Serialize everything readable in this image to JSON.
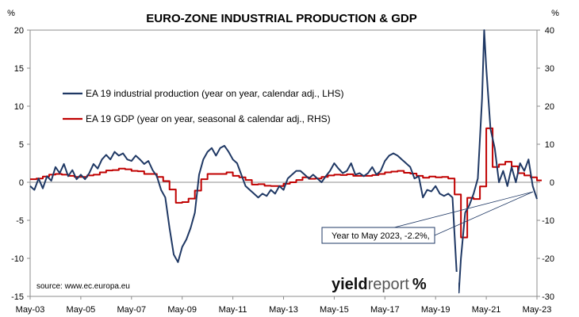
{
  "chart_data": {
    "type": "line",
    "title": "EURO-ZONE INDUSTRIAL PRODUCTION & GDP",
    "left_unit": "%",
    "right_unit": "%",
    "x_tick_labels": [
      "May-03",
      "May-05",
      "May-07",
      "May-09",
      "May-11",
      "May-13",
      "May-15",
      "May-17",
      "May-19",
      "May-21",
      "May-23"
    ],
    "x_range": [
      "2003-05",
      "2023-05"
    ],
    "ylim_left": [
      -15,
      20
    ],
    "ylim_right": [
      -30,
      40
    ],
    "yticks_left": [
      "20",
      "15",
      "10",
      "5",
      "0",
      "-5",
      "-10",
      "-15"
    ],
    "yticks_right": [
      "40",
      "30",
      "20",
      "10",
      "0",
      "-10",
      "-20",
      "-30"
    ],
    "grid": false,
    "legend_position": "upper-left",
    "series": [
      {
        "name": "EA 19 industrial production (year on year, calendar adj., LHS)",
        "color": "#1f3864",
        "axis": "left",
        "points": [
          [
            "2003-05",
            -0.5
          ],
          [
            "2003-07",
            -1.0
          ],
          [
            "2003-09",
            0.5
          ],
          [
            "2003-11",
            -0.8
          ],
          [
            "2004-01",
            0.8
          ],
          [
            "2004-03",
            0.2
          ],
          [
            "2004-05",
            2.0
          ],
          [
            "2004-07",
            1.2
          ],
          [
            "2004-09",
            2.4
          ],
          [
            "2004-11",
            0.8
          ],
          [
            "2005-01",
            1.6
          ],
          [
            "2005-03",
            0.4
          ],
          [
            "2005-05",
            1.0
          ],
          [
            "2005-07",
            0.4
          ],
          [
            "2005-09",
            1.2
          ],
          [
            "2005-11",
            2.4
          ],
          [
            "2006-01",
            1.8
          ],
          [
            "2006-03",
            3.0
          ],
          [
            "2006-05",
            3.6
          ],
          [
            "2006-07",
            3.0
          ],
          [
            "2006-09",
            4.0
          ],
          [
            "2006-11",
            3.5
          ],
          [
            "2007-01",
            3.8
          ],
          [
            "2007-03",
            3.0
          ],
          [
            "2007-05",
            2.8
          ],
          [
            "2007-07",
            3.5
          ],
          [
            "2007-09",
            3.0
          ],
          [
            "2007-11",
            2.4
          ],
          [
            "2008-01",
            2.8
          ],
          [
            "2008-03",
            1.6
          ],
          [
            "2008-05",
            0.8
          ],
          [
            "2008-07",
            -1.0
          ],
          [
            "2008-09",
            -2.0
          ],
          [
            "2008-11",
            -6.0
          ],
          [
            "2009-01",
            -9.5
          ],
          [
            "2009-03",
            -10.5
          ],
          [
            "2009-05",
            -8.5
          ],
          [
            "2009-07",
            -7.5
          ],
          [
            "2009-09",
            -6.0
          ],
          [
            "2009-11",
            -4.0
          ],
          [
            "2010-01",
            1.0
          ],
          [
            "2010-03",
            3.0
          ],
          [
            "2010-05",
            4.0
          ],
          [
            "2010-07",
            4.5
          ],
          [
            "2010-09",
            3.5
          ],
          [
            "2010-11",
            4.5
          ],
          [
            "2011-01",
            4.8
          ],
          [
            "2011-03",
            4.0
          ],
          [
            "2011-05",
            3.0
          ],
          [
            "2011-07",
            2.5
          ],
          [
            "2011-09",
            1.0
          ],
          [
            "2011-11",
            -0.5
          ],
          [
            "2012-01",
            -1.0
          ],
          [
            "2012-03",
            -1.5
          ],
          [
            "2012-05",
            -2.0
          ],
          [
            "2012-07",
            -1.5
          ],
          [
            "2012-09",
            -1.8
          ],
          [
            "2012-11",
            -1.0
          ],
          [
            "2013-01",
            -1.5
          ],
          [
            "2013-03",
            -0.5
          ],
          [
            "2013-05",
            -1.0
          ],
          [
            "2013-07",
            0.5
          ],
          [
            "2013-09",
            1.0
          ],
          [
            "2013-11",
            1.5
          ],
          [
            "2014-01",
            1.5
          ],
          [
            "2014-03",
            1.0
          ],
          [
            "2014-05",
            0.5
          ],
          [
            "2014-07",
            1.0
          ],
          [
            "2014-09",
            0.5
          ],
          [
            "2014-11",
            0.0
          ],
          [
            "2015-01",
            0.8
          ],
          [
            "2015-03",
            1.5
          ],
          [
            "2015-05",
            2.5
          ],
          [
            "2015-07",
            1.8
          ],
          [
            "2015-09",
            1.2
          ],
          [
            "2015-11",
            1.5
          ],
          [
            "2016-01",
            2.5
          ],
          [
            "2016-03",
            1.0
          ],
          [
            "2016-05",
            1.2
          ],
          [
            "2016-07",
            0.8
          ],
          [
            "2016-09",
            1.2
          ],
          [
            "2016-11",
            2.0
          ],
          [
            "2017-01",
            1.0
          ],
          [
            "2017-03",
            1.5
          ],
          [
            "2017-05",
            2.8
          ],
          [
            "2017-07",
            3.5
          ],
          [
            "2017-09",
            3.8
          ],
          [
            "2017-11",
            3.5
          ],
          [
            "2018-01",
            3.0
          ],
          [
            "2018-03",
            2.5
          ],
          [
            "2018-05",
            2.0
          ],
          [
            "2018-07",
            0.5
          ],
          [
            "2018-09",
            0.8
          ],
          [
            "2018-11",
            -2.0
          ],
          [
            "2019-01",
            -1.0
          ],
          [
            "2019-03",
            -1.2
          ],
          [
            "2019-05",
            -0.5
          ],
          [
            "2019-07",
            -1.5
          ],
          [
            "2019-09",
            -1.8
          ],
          [
            "2019-11",
            -1.5
          ],
          [
            "2020-01",
            -2.0
          ],
          [
            "2020-03",
            -12.0
          ],
          [
            "2020-04",
            -14.5
          ],
          [
            "2020-05",
            -10.0
          ],
          [
            "2020-07",
            -4.0
          ],
          [
            "2020-09",
            -3.0
          ],
          [
            "2020-11",
            -1.5
          ],
          [
            "2021-01",
            0.5
          ],
          [
            "2021-03",
            11.0
          ],
          [
            "2021-04",
            20.0
          ],
          [
            "2021-05",
            15.0
          ],
          [
            "2021-07",
            7.0
          ],
          [
            "2021-09",
            4.5
          ],
          [
            "2021-11",
            0.0
          ],
          [
            "2022-01",
            1.5
          ],
          [
            "2022-03",
            -0.5
          ],
          [
            "2022-05",
            2.0
          ],
          [
            "2022-07",
            0.0
          ],
          [
            "2022-09",
            2.5
          ],
          [
            "2022-11",
            1.5
          ],
          [
            "2023-01",
            3.0
          ],
          [
            "2023-03",
            -0.5
          ],
          [
            "2023-05",
            -2.2
          ]
        ]
      },
      {
        "name": "EA 19 GDP (year on year, seasonal & calendar adj., RHS)",
        "color": "#c00000",
        "axis": "right",
        "step": true,
        "points": [
          [
            "2003-05",
            0.8
          ],
          [
            "2003-08",
            1.0
          ],
          [
            "2003-11",
            1.5
          ],
          [
            "2004-02",
            2.0
          ],
          [
            "2004-05",
            2.2
          ],
          [
            "2004-08",
            2.0
          ],
          [
            "2004-11",
            1.7
          ],
          [
            "2005-02",
            1.4
          ],
          [
            "2005-05",
            1.4
          ],
          [
            "2005-08",
            1.8
          ],
          [
            "2005-11",
            2.0
          ],
          [
            "2006-02",
            2.6
          ],
          [
            "2006-05",
            3.1
          ],
          [
            "2006-08",
            3.2
          ],
          [
            "2006-11",
            3.6
          ],
          [
            "2007-02",
            3.4
          ],
          [
            "2007-05",
            3.0
          ],
          [
            "2007-08",
            2.9
          ],
          [
            "2007-11",
            2.2
          ],
          [
            "2008-02",
            2.2
          ],
          [
            "2008-05",
            1.4
          ],
          [
            "2008-08",
            0.3
          ],
          [
            "2008-11",
            -1.9
          ],
          [
            "2009-02",
            -5.4
          ],
          [
            "2009-05",
            -5.2
          ],
          [
            "2009-08",
            -4.3
          ],
          [
            "2009-11",
            -2.2
          ],
          [
            "2010-02",
            0.8
          ],
          [
            "2010-05",
            2.2
          ],
          [
            "2010-08",
            2.2
          ],
          [
            "2010-11",
            2.2
          ],
          [
            "2011-02",
            2.6
          ],
          [
            "2011-05",
            1.7
          ],
          [
            "2011-08",
            1.3
          ],
          [
            "2011-11",
            0.6
          ],
          [
            "2012-02",
            -0.6
          ],
          [
            "2012-05",
            -0.5
          ],
          [
            "2012-08",
            -0.9
          ],
          [
            "2012-11",
            -1.0
          ],
          [
            "2013-02",
            -1.0
          ],
          [
            "2013-05",
            -0.4
          ],
          [
            "2013-08",
            0.0
          ],
          [
            "2013-11",
            0.6
          ],
          [
            "2014-02",
            1.3
          ],
          [
            "2014-05",
            0.9
          ],
          [
            "2014-08",
            1.0
          ],
          [
            "2014-11",
            1.4
          ],
          [
            "2015-02",
            1.8
          ],
          [
            "2015-05",
            2.0
          ],
          [
            "2015-08",
            1.9
          ],
          [
            "2015-11",
            2.1
          ],
          [
            "2016-02",
            1.7
          ],
          [
            "2016-05",
            1.7
          ],
          [
            "2016-08",
            1.7
          ],
          [
            "2016-11",
            1.9
          ],
          [
            "2017-02",
            2.2
          ],
          [
            "2017-05",
            2.6
          ],
          [
            "2017-08",
            2.8
          ],
          [
            "2017-11",
            3.0
          ],
          [
            "2018-02",
            2.5
          ],
          [
            "2018-05",
            2.3
          ],
          [
            "2018-08",
            1.7
          ],
          [
            "2018-11",
            1.2
          ],
          [
            "2019-02",
            1.5
          ],
          [
            "2019-05",
            1.3
          ],
          [
            "2019-08",
            1.4
          ],
          [
            "2019-11",
            1.0
          ],
          [
            "2020-02",
            -3.2
          ],
          [
            "2020-05",
            -14.5
          ],
          [
            "2020-08",
            -4.1
          ],
          [
            "2020-11",
            -4.4
          ],
          [
            "2021-02",
            -1.1
          ],
          [
            "2021-05",
            14.2
          ],
          [
            "2021-08",
            4.0
          ],
          [
            "2021-11",
            4.7
          ],
          [
            "2022-02",
            5.4
          ],
          [
            "2022-05",
            4.2
          ],
          [
            "2022-08",
            2.4
          ],
          [
            "2022-11",
            1.8
          ],
          [
            "2023-02",
            1.3
          ],
          [
            "2023-05",
            0.5
          ]
        ]
      }
    ],
    "annotation": "Year to May 2023, -2.2%,",
    "source": "source: www.ec.europa.eu"
  },
  "logo": {
    "part1": "yield",
    "part2": "report",
    "part3": "%"
  }
}
